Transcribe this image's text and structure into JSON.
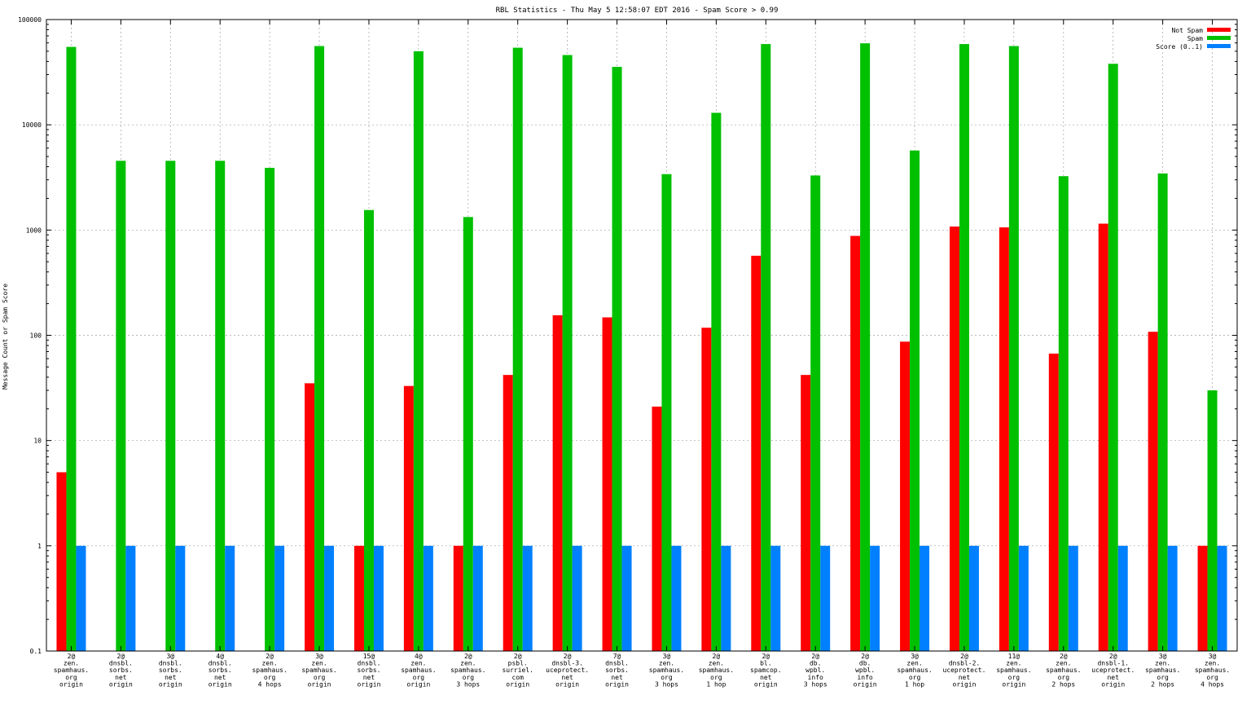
{
  "chart_data": {
    "type": "bar",
    "scale": "log",
    "title": "RBL Statistics - Thu May  5 12:58:07 EDT 2016 - Spam Score > 0.99",
    "xlabel": "",
    "ylabel": "Message Count or Spam Score",
    "ylim": [
      0.1,
      100000
    ],
    "y_ticks": [
      "0.1",
      "1",
      "10",
      "100",
      "1000",
      "10000",
      "100000"
    ],
    "grid": true,
    "legend_position": "top-right",
    "categories": [
      [
        "2@",
        "zen.",
        "spamhaus.",
        "org",
        "origin"
      ],
      [
        "2@",
        "dnsbl.",
        "sorbs.",
        "net",
        "origin"
      ],
      [
        "3@",
        "dnsbl.",
        "sorbs.",
        "net",
        "origin"
      ],
      [
        "4@",
        "dnsbl.",
        "sorbs.",
        "net",
        "origin"
      ],
      [
        "2@",
        "zen.",
        "spamhaus.",
        "org",
        "4 hops"
      ],
      [
        "3@",
        "zen.",
        "spamhaus.",
        "org",
        "origin"
      ],
      [
        "15@",
        "dnsbl.",
        "sorbs.",
        "net",
        "origin"
      ],
      [
        "4@",
        "zen.",
        "spamhaus.",
        "org",
        "origin"
      ],
      [
        "2@",
        "zen.",
        "spamhaus.",
        "org",
        "3 hops"
      ],
      [
        "2@",
        "psbl.",
        "surriel.",
        "com",
        "origin"
      ],
      [
        "2@",
        "dnsbl-3.",
        "uceprotect.",
        "net",
        "origin"
      ],
      [
        "7@",
        "dnsbl.",
        "sorbs.",
        "net",
        "origin"
      ],
      [
        "3@",
        "zen.",
        "spamhaus.",
        "org",
        "3 hops"
      ],
      [
        "2@",
        "zen.",
        "spamhaus.",
        "org",
        "1 hop"
      ],
      [
        "2@",
        "bl.",
        "spamcop.",
        "net",
        "origin"
      ],
      [
        "2@",
        "db.",
        "wpbl.",
        "info",
        "3 hops"
      ],
      [
        "2@",
        "db.",
        "wpbl.",
        "info",
        "origin"
      ],
      [
        "3@",
        "zen.",
        "spamhaus.",
        "org",
        "1 hop"
      ],
      [
        "2@",
        "dnsbl-2.",
        "uceprotect.",
        "net",
        "origin"
      ],
      [
        "11@",
        "zen.",
        "spamhaus.",
        "org",
        "origin"
      ],
      [
        "2@",
        "zen.",
        "spamhaus.",
        "org",
        "2 hops"
      ],
      [
        "2@",
        "dnsbl-1.",
        "uceprotect.",
        "net",
        "origin"
      ],
      [
        "3@",
        "zen.",
        "spamhaus.",
        "org",
        "2 hops"
      ],
      [
        "3@",
        "zen.",
        "spamhaus.",
        "org",
        "4 hops"
      ]
    ],
    "series": [
      {
        "name": "Not Spam",
        "color": "#ff0000",
        "values": [
          5,
          0,
          0,
          0,
          0,
          35,
          1,
          33,
          1,
          42,
          155,
          148,
          21,
          118,
          570,
          42,
          880,
          87,
          1080,
          1060,
          67,
          1150,
          108,
          1
        ]
      },
      {
        "name": "Spam",
        "color": "#00c000",
        "values": [
          55000,
          4550,
          4550,
          4550,
          3900,
          56000,
          1550,
          50000,
          1330,
          54000,
          46000,
          35500,
          3400,
          13000,
          58500,
          3300,
          59500,
          5700,
          58500,
          56000,
          3250,
          38000,
          3450,
          30
        ]
      },
      {
        "name": "Score (0..1)",
        "color": "#0080ff",
        "values": [
          1,
          1,
          1,
          1,
          1,
          1,
          1,
          1,
          1,
          1,
          1,
          1,
          1,
          1,
          1,
          1,
          1,
          1,
          1,
          1,
          1,
          1,
          1,
          1
        ]
      }
    ]
  }
}
